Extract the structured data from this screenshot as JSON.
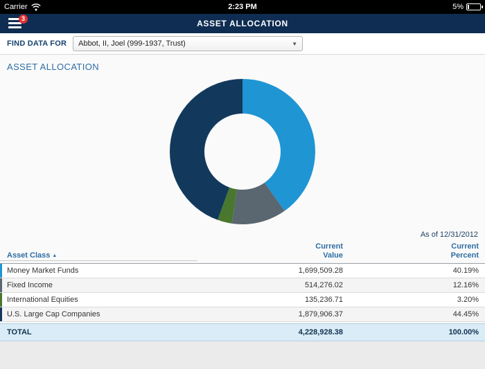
{
  "status_bar": {
    "carrier": "Carrier",
    "time": "2:23 PM",
    "battery_percent": "5%"
  },
  "nav": {
    "title": "ASSET ALLOCATION",
    "menu_badge": "3"
  },
  "find_data": {
    "label": "FIND DATA FOR",
    "selected_value": "Abbot, II, Joel (999-1937, Trust)"
  },
  "page": {
    "section_title": "ASSET ALLOCATION",
    "as_of": "As of 12/31/2012"
  },
  "icons": {
    "sort_asc": "▲",
    "dropdown_chevron": "▼"
  },
  "chart_data": {
    "type": "pie",
    "donut": true,
    "title": "Asset Allocation",
    "as_of": "12/31/2012",
    "categories": [
      "Money Market Funds",
      "Fixed Income",
      "International Equities",
      "U.S. Large Cap Companies"
    ],
    "values": [
      40.19,
      12.16,
      3.2,
      44.45
    ],
    "colors": [
      "#1f95d4",
      "#5a6670",
      "#49772e",
      "#12395c"
    ],
    "legend_position": "none"
  },
  "table": {
    "headers": {
      "asset_class": "Asset Class",
      "value_line1": "Current",
      "value_line2": "Value",
      "percent_line1": "Current",
      "percent_line2": "Percent"
    },
    "rows": [
      {
        "asset_class": "Money Market Funds",
        "value": "1,699,509.28",
        "percent": "40.19%",
        "color": "#1f95d4"
      },
      {
        "asset_class": "Fixed Income",
        "value": "514,276.02",
        "percent": "12.16%",
        "color": "#5a6670"
      },
      {
        "asset_class": "International Equities",
        "value": "135,236.71",
        "percent": "3.20%",
        "color": "#49772e"
      },
      {
        "asset_class": "U.S. Large Cap Companies",
        "value": "1,879,906.37",
        "percent": "44.45%",
        "color": "#12395c"
      }
    ],
    "total": {
      "label": "TOTAL",
      "value": "4,228,928.38",
      "percent": "100.00%"
    }
  }
}
